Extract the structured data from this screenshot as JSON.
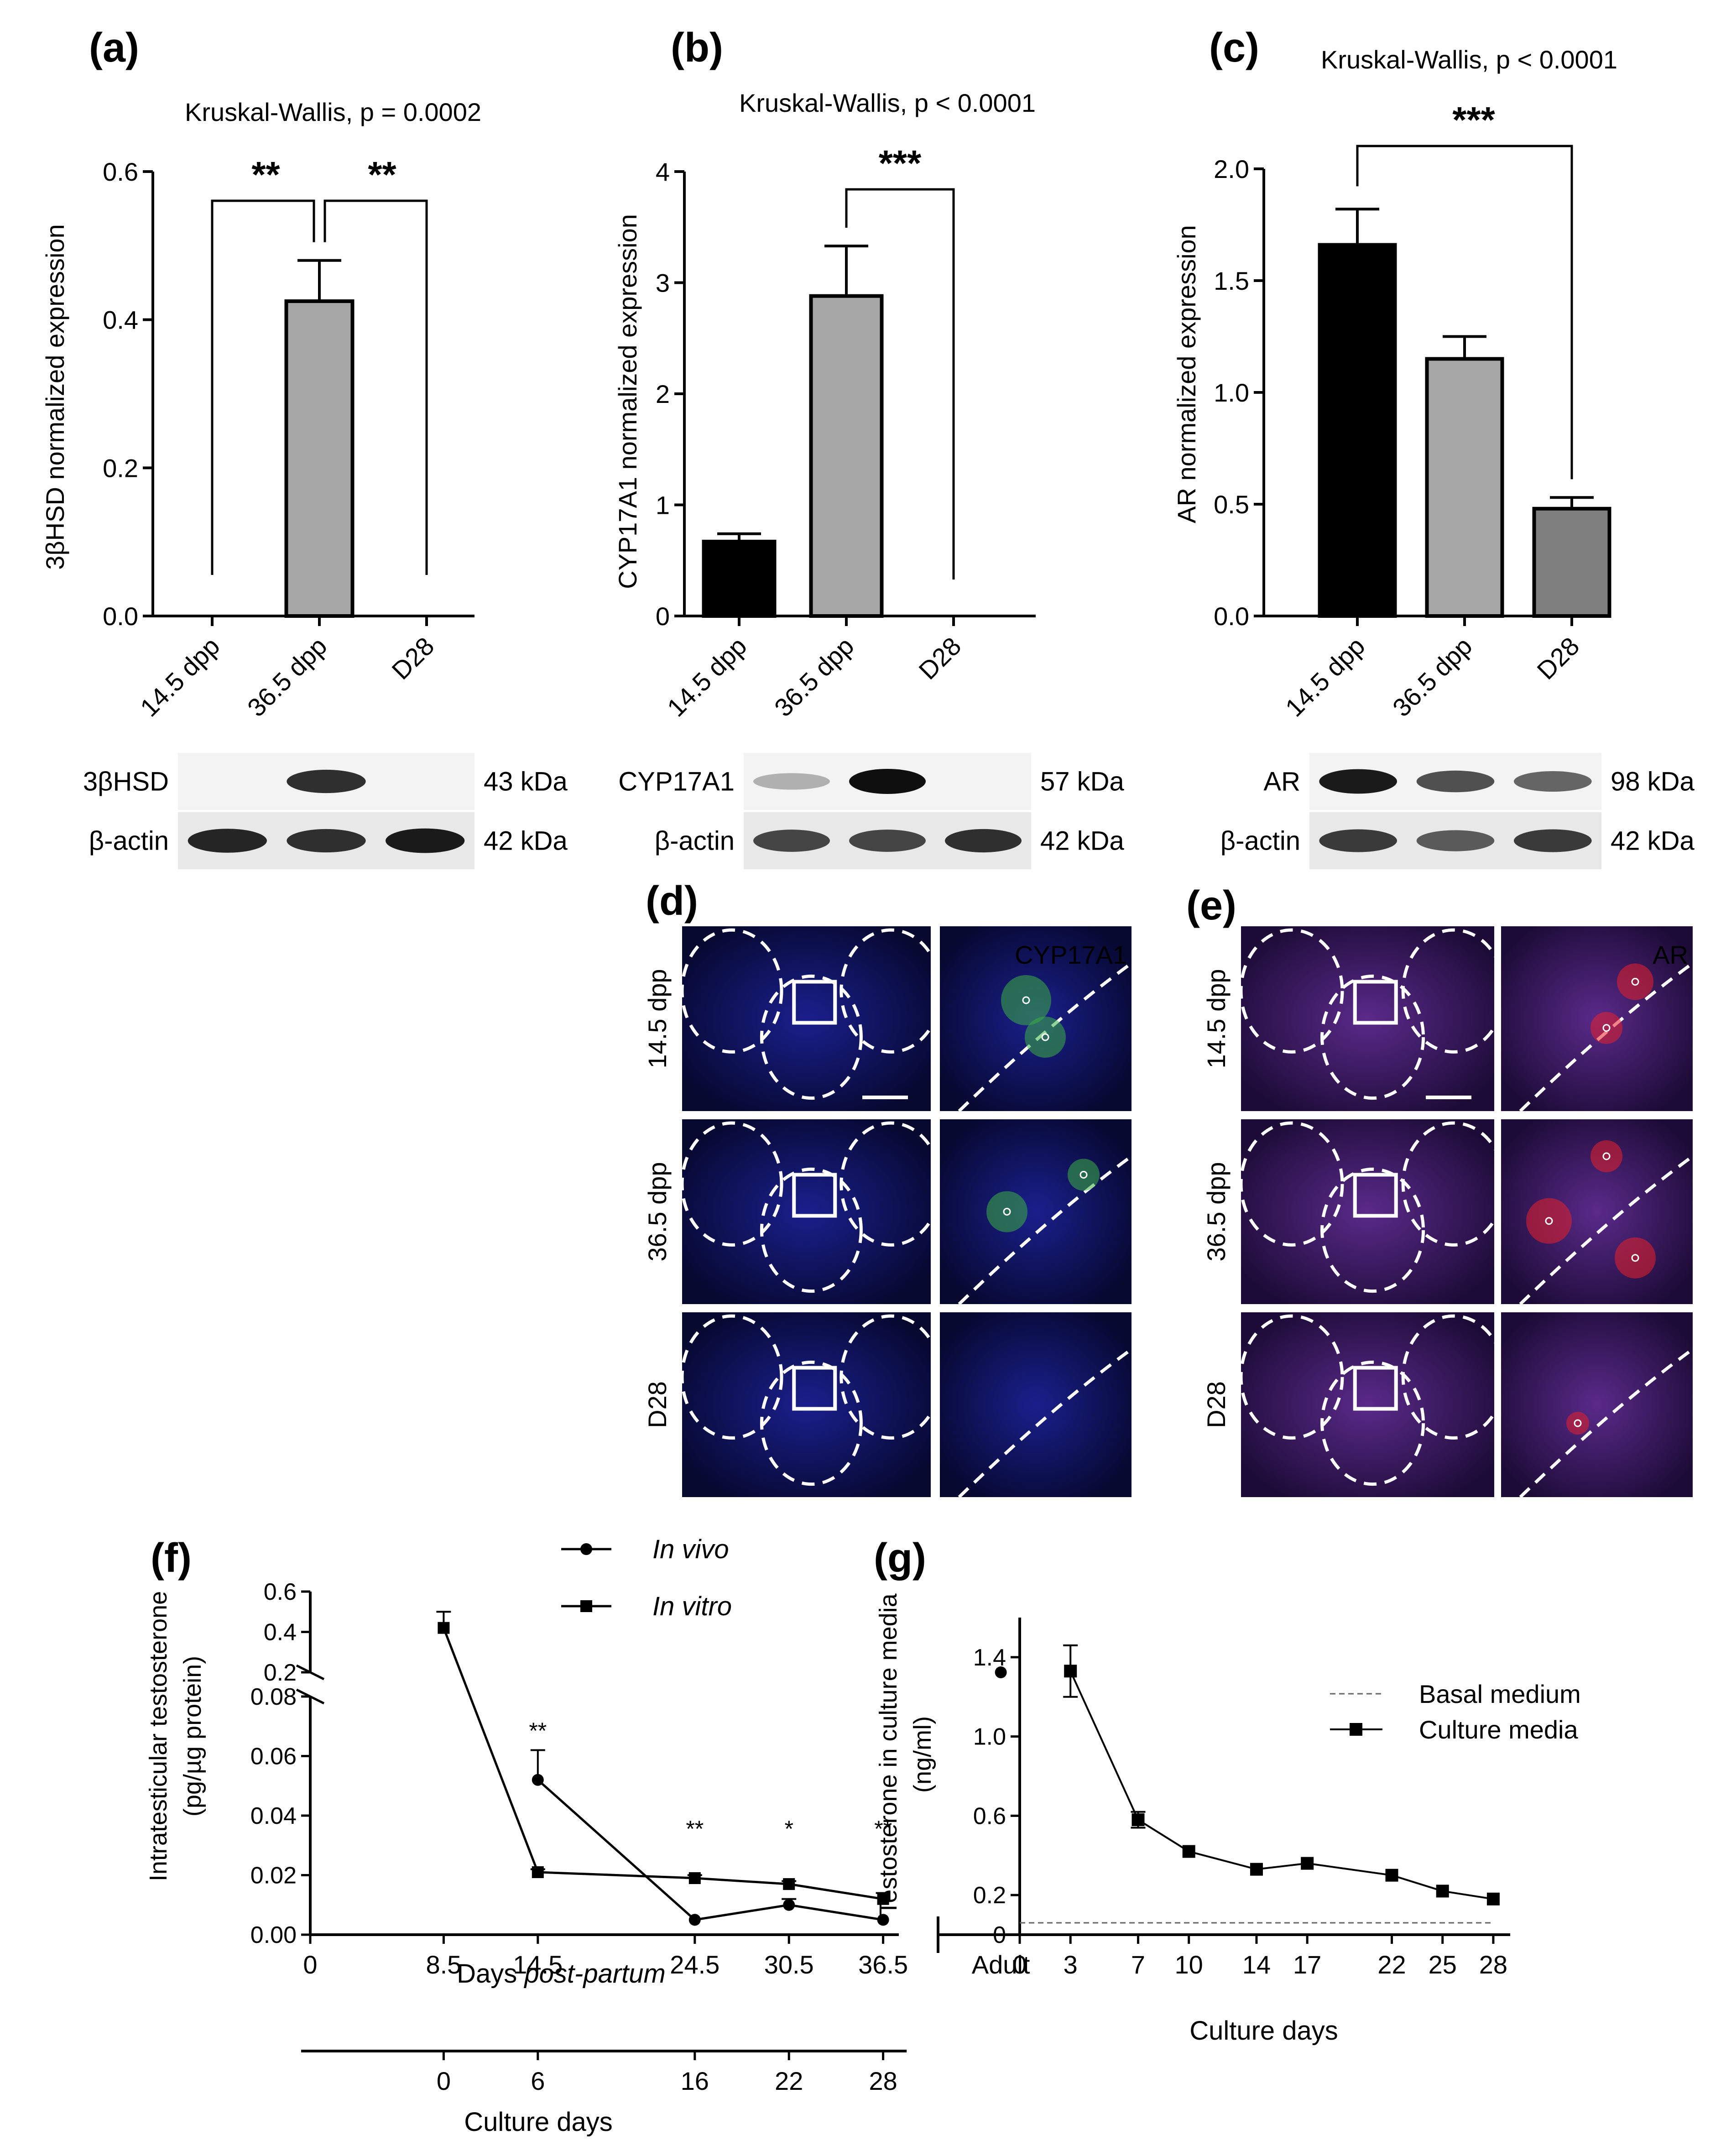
{
  "panels": {
    "a": {
      "label": "(a)",
      "stat_test": "Kruskal-Wallis, p = 0.0002",
      "ylabel": "3βHSD normalized expression",
      "sig": [
        "**",
        "**"
      ],
      "blot": {
        "rows": [
          {
            "name": "3βHSD",
            "kda": "43 kDa"
          },
          {
            "name": "β-actin",
            "kda": "42 kDa"
          }
        ]
      }
    },
    "b": {
      "label": "(b)",
      "stat_test": "Kruskal-Wallis, p < 0.0001",
      "ylabel": "CYP17A1 normalized expression",
      "sig": [
        "***"
      ],
      "blot": {
        "rows": [
          {
            "name": "CYP17A1",
            "kda": "57 kDa"
          },
          {
            "name": "β-actin",
            "kda": "42 kDa"
          }
        ]
      }
    },
    "c": {
      "label": "(c)",
      "stat_test": "Kruskal-Wallis, p < 0.0001",
      "ylabel": "AR normalized expression",
      "sig": [
        "***"
      ],
      "blot": {
        "rows": [
          {
            "name": "AR",
            "kda": "98 kDa"
          },
          {
            "name": "β-actin",
            "kda": "42 kDa"
          }
        ]
      }
    },
    "d": {
      "label": "(d)",
      "marker": "CYP17A1",
      "marker_color": "#3cb043",
      "rows": [
        "14.5 dpp",
        "36.5 dpp",
        "D28"
      ]
    },
    "e": {
      "label": "(e)",
      "marker": "AR",
      "marker_color": "#e8202a",
      "rows": [
        "14.5 dpp",
        "36.5 dpp",
        "D28"
      ]
    },
    "f": {
      "label": "(f)",
      "ylabel_line1": "Intratesticular testosterone",
      "ylabel_line2": "(pg/µg protein)",
      "xlabel_prefix": "Days ",
      "xlabel_italic": "post-partum",
      "xlabel2": "Culture days",
      "adult_label": "Adult",
      "legend": [
        {
          "name": "In vivo",
          "marker": "circle"
        },
        {
          "name": "In vitro",
          "marker": "square"
        }
      ]
    },
    "g": {
      "label": "(g)",
      "ylabel_line1": "Testosterone in culture media",
      "ylabel_line2": "(ng/ml)",
      "xlabel": "Culture days",
      "legend": [
        {
          "name": "Basal medium",
          "style": "dashed"
        },
        {
          "name": "Culture media",
          "marker": "square"
        }
      ]
    }
  },
  "chart_data": [
    {
      "id": "a",
      "type": "bar",
      "categories": [
        "14.5 dpp",
        "36.5 dpp",
        "D28"
      ],
      "values": [
        0.0,
        0.425,
        0.0
      ],
      "errors": [
        0,
        0.055,
        0
      ],
      "colors": [
        "#000000",
        "#a6a6a6",
        "#7f7f7f"
      ],
      "ylim": [
        0,
        0.6
      ],
      "yticks": [
        "0.0",
        "0.2",
        "0.4",
        "0.6"
      ],
      "brackets": [
        {
          "from": "14.5 dpp",
          "to": "36.5 dpp",
          "label": "**"
        },
        {
          "from": "36.5 dpp",
          "to": "D28",
          "label": "**"
        }
      ]
    },
    {
      "id": "b",
      "type": "bar",
      "categories": [
        "14.5 dpp",
        "36.5 dpp",
        "D28"
      ],
      "values": [
        0.67,
        2.88,
        0.0
      ],
      "errors": [
        0.07,
        0.45,
        0
      ],
      "colors": [
        "#000000",
        "#a6a6a6",
        "#7f7f7f"
      ],
      "ylim": [
        0,
        4
      ],
      "yticks": [
        "0",
        "1",
        "2",
        "3",
        "4"
      ],
      "brackets": [
        {
          "from": "36.5 dpp",
          "to": "D28",
          "label": "***"
        }
      ]
    },
    {
      "id": "c",
      "type": "bar",
      "categories": [
        "14.5 dpp",
        "36.5 dpp",
        "D28"
      ],
      "values": [
        1.66,
        1.15,
        0.48
      ],
      "errors": [
        0.16,
        0.1,
        0.05
      ],
      "colors": [
        "#000000",
        "#a6a6a6",
        "#7f7f7f"
      ],
      "ylim": [
        0,
        2.0
      ],
      "yticks": [
        "0.0",
        "0.5",
        "1.0",
        "1.5",
        "2.0"
      ],
      "brackets": [
        {
          "from": "14.5 dpp",
          "to": "D28",
          "label": "***"
        }
      ]
    },
    {
      "id": "f",
      "type": "line",
      "xticks": [
        "0",
        "8.5",
        "14.5",
        "24.5",
        "30.5",
        "36.5"
      ],
      "x2ticks": [
        "0",
        "6",
        "16",
        "22",
        "28"
      ],
      "x2_positions_dpp": [
        8.5,
        14.5,
        24.5,
        30.5,
        36.5
      ],
      "yticks_low": [
        "0.00",
        "0.02",
        "0.04",
        "0.06",
        "0.08"
      ],
      "yticks_high": [
        "0.2",
        "0.4",
        "0.6"
      ],
      "ylim_low": [
        0,
        0.08
      ],
      "ylim_high": [
        0.2,
        0.6
      ],
      "series": [
        {
          "name": "In vivo",
          "marker": "circle",
          "x": [
            14.5,
            24.5,
            30.5,
            36.5
          ],
          "y": [
            0.052,
            0.005,
            0.01,
            0.005
          ],
          "err": [
            0.01,
            0,
            0.002,
            0
          ]
        },
        {
          "name": "In vitro",
          "marker": "square",
          "x": [
            8.5,
            14.5,
            24.5,
            30.5,
            36.5
          ],
          "y": [
            0.42,
            0.021,
            0.019,
            0.017,
            0.012
          ],
          "err": [
            0.08,
            0.001,
            0.001,
            0.001,
            0.002
          ]
        }
      ],
      "adult_value": 0.2,
      "sig": [
        {
          "x": 14.5,
          "label": "**"
        },
        {
          "x": 24.5,
          "label": "**"
        },
        {
          "x": 30.5,
          "label": "*"
        },
        {
          "x": 36.5,
          "label": "**"
        }
      ]
    },
    {
      "id": "g",
      "type": "line",
      "xticks": [
        "0",
        "3",
        "7",
        "10",
        "14",
        "17",
        "22",
        "25",
        "28"
      ],
      "yticks": [
        "0",
        "0.2",
        "0.6",
        "1.0",
        "1.4"
      ],
      "ylim": [
        0,
        1.6
      ],
      "xlim": [
        0,
        29
      ],
      "series": [
        {
          "name": "Culture media",
          "marker": "square",
          "x": [
            3,
            7,
            10,
            14,
            17,
            22,
            25,
            28
          ],
          "y": [
            1.33,
            0.58,
            0.42,
            0.33,
            0.36,
            0.3,
            0.22,
            0.18
          ],
          "err": [
            0.13,
            0.04,
            0.01,
            0.01,
            0.01,
            0.01,
            0.01,
            0.01
          ]
        },
        {
          "name": "Basal medium",
          "style": "dashed",
          "x": [
            0,
            28
          ],
          "y": [
            0.06,
            0.06
          ]
        }
      ]
    }
  ]
}
